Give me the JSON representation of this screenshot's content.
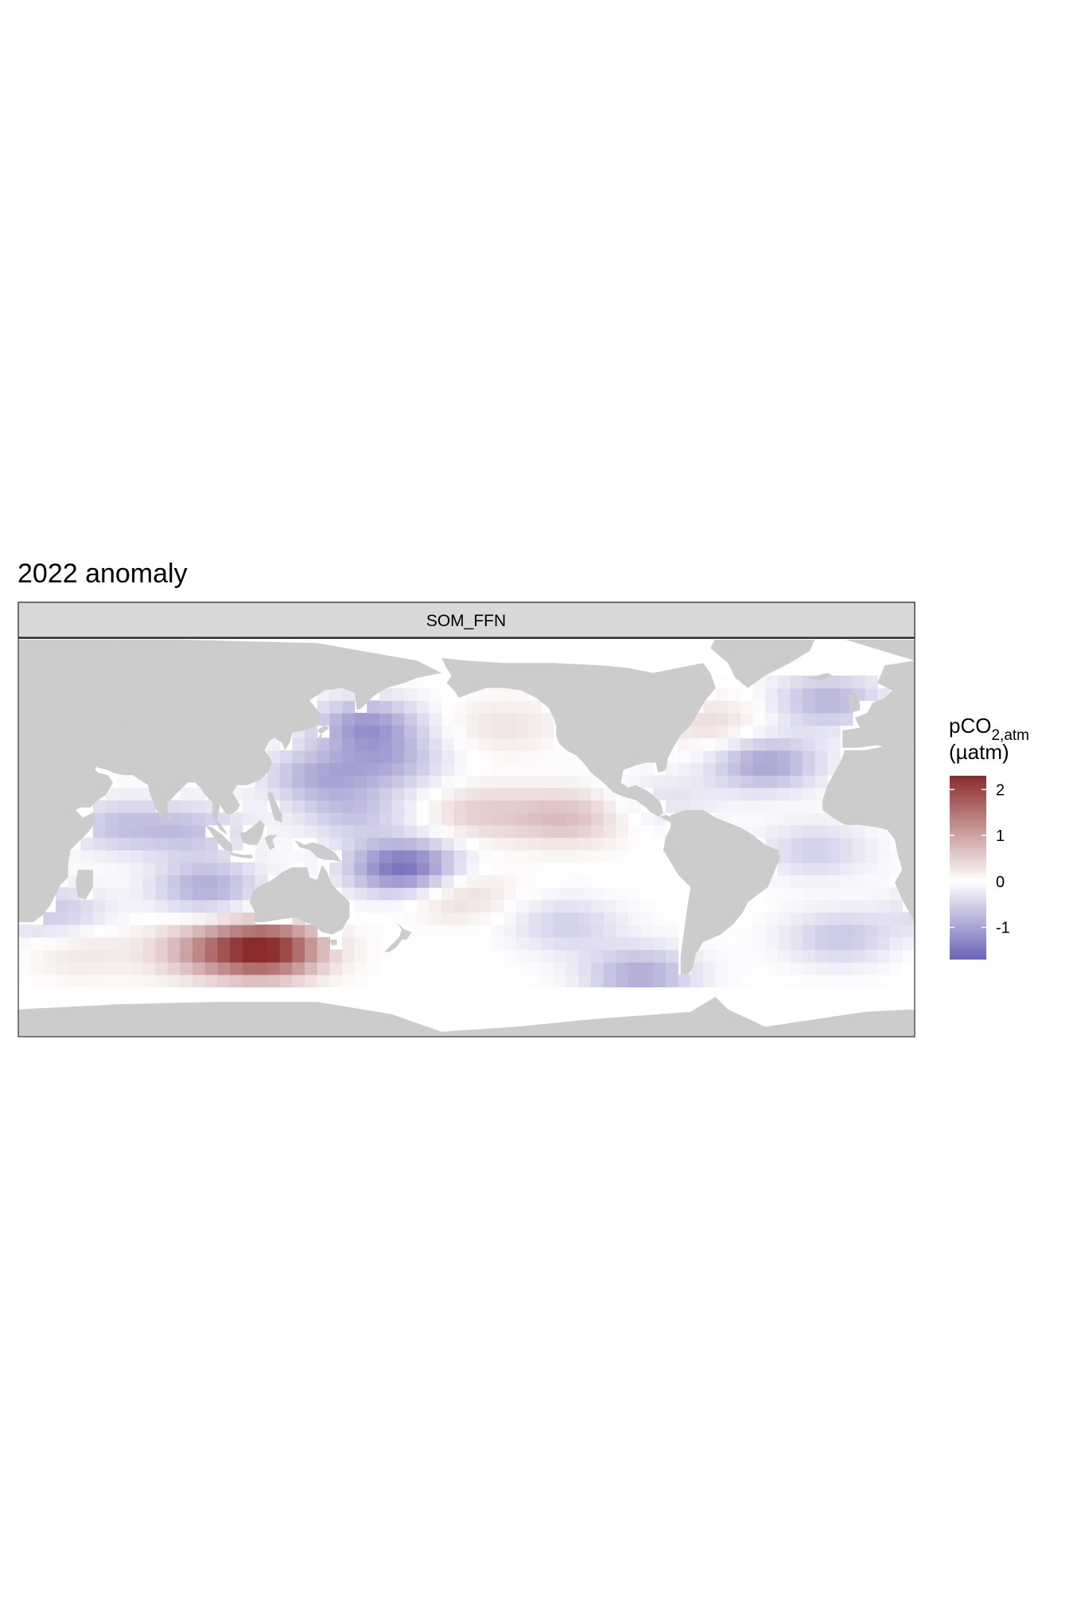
{
  "chart_data": {
    "type": "heatmap",
    "title": "2022 anomaly",
    "facet": "SOM_FFN",
    "legend": {
      "title_main": "pCO",
      "title_sub": "2,atm",
      "title_unit": "(µatm)",
      "ticks": [
        2,
        1,
        0,
        -1
      ],
      "tick_labels": [
        "2",
        "1",
        "0",
        "-1"
      ],
      "range": [
        -1.7,
        2.3
      ],
      "colors": {
        "low": "#6a62b5",
        "mid": "#ffffff",
        "high": "#8b2a2a"
      },
      "placement": "right"
    },
    "map": {
      "land_color": "#cccccc",
      "missing_color": "#ffffff",
      "lon_range": [
        20,
        380
      ],
      "lat_range": [
        -80,
        80
      ]
    },
    "anomaly_features": [
      {
        "lon": 160,
        "lat": 45,
        "value": -1.1
      },
      {
        "lon": 170,
        "lat": 30,
        "value": -0.7
      },
      {
        "lon": 140,
        "lat": 25,
        "value": -0.8
      },
      {
        "lon": 155,
        "lat": 10,
        "value": -0.6
      },
      {
        "lon": 215,
        "lat": 45,
        "value": 0.3
      },
      {
        "lon": 240,
        "lat": 8,
        "value": 0.7
      },
      {
        "lon": 205,
        "lat": 10,
        "value": 0.5
      },
      {
        "lon": 175,
        "lat": -12,
        "value": -1.6
      },
      {
        "lon": 195,
        "lat": -22,
        "value": 0.5
      },
      {
        "lon": 240,
        "lat": -35,
        "value": -0.5
      },
      {
        "lon": 120,
        "lat": -45,
        "value": 2.2
      },
      {
        "lon": 95,
        "lat": -45,
        "value": 0.9
      },
      {
        "lon": 45,
        "lat": -45,
        "value": 0.3
      },
      {
        "lon": 60,
        "lat": 5,
        "value": -0.6
      },
      {
        "lon": 90,
        "lat": 3,
        "value": -0.6
      },
      {
        "lon": 95,
        "lat": -20,
        "value": -0.9
      },
      {
        "lon": 35,
        "lat": -30,
        "value": -0.6
      },
      {
        "lon": 70,
        "lat": -20,
        "value": 0.05
      },
      {
        "lon": 320,
        "lat": 30,
        "value": -1.0
      },
      {
        "lon": 300,
        "lat": 45,
        "value": 0.4
      },
      {
        "lon": 340,
        "lat": -5,
        "value": -0.5
      },
      {
        "lon": 350,
        "lat": -40,
        "value": -0.6
      },
      {
        "lon": 345,
        "lat": 55,
        "value": -0.8
      },
      {
        "lon": 280,
        "lat": 15,
        "value": -0.3
      },
      {
        "lon": 270,
        "lat": -55,
        "value": -0.9
      }
    ]
  }
}
